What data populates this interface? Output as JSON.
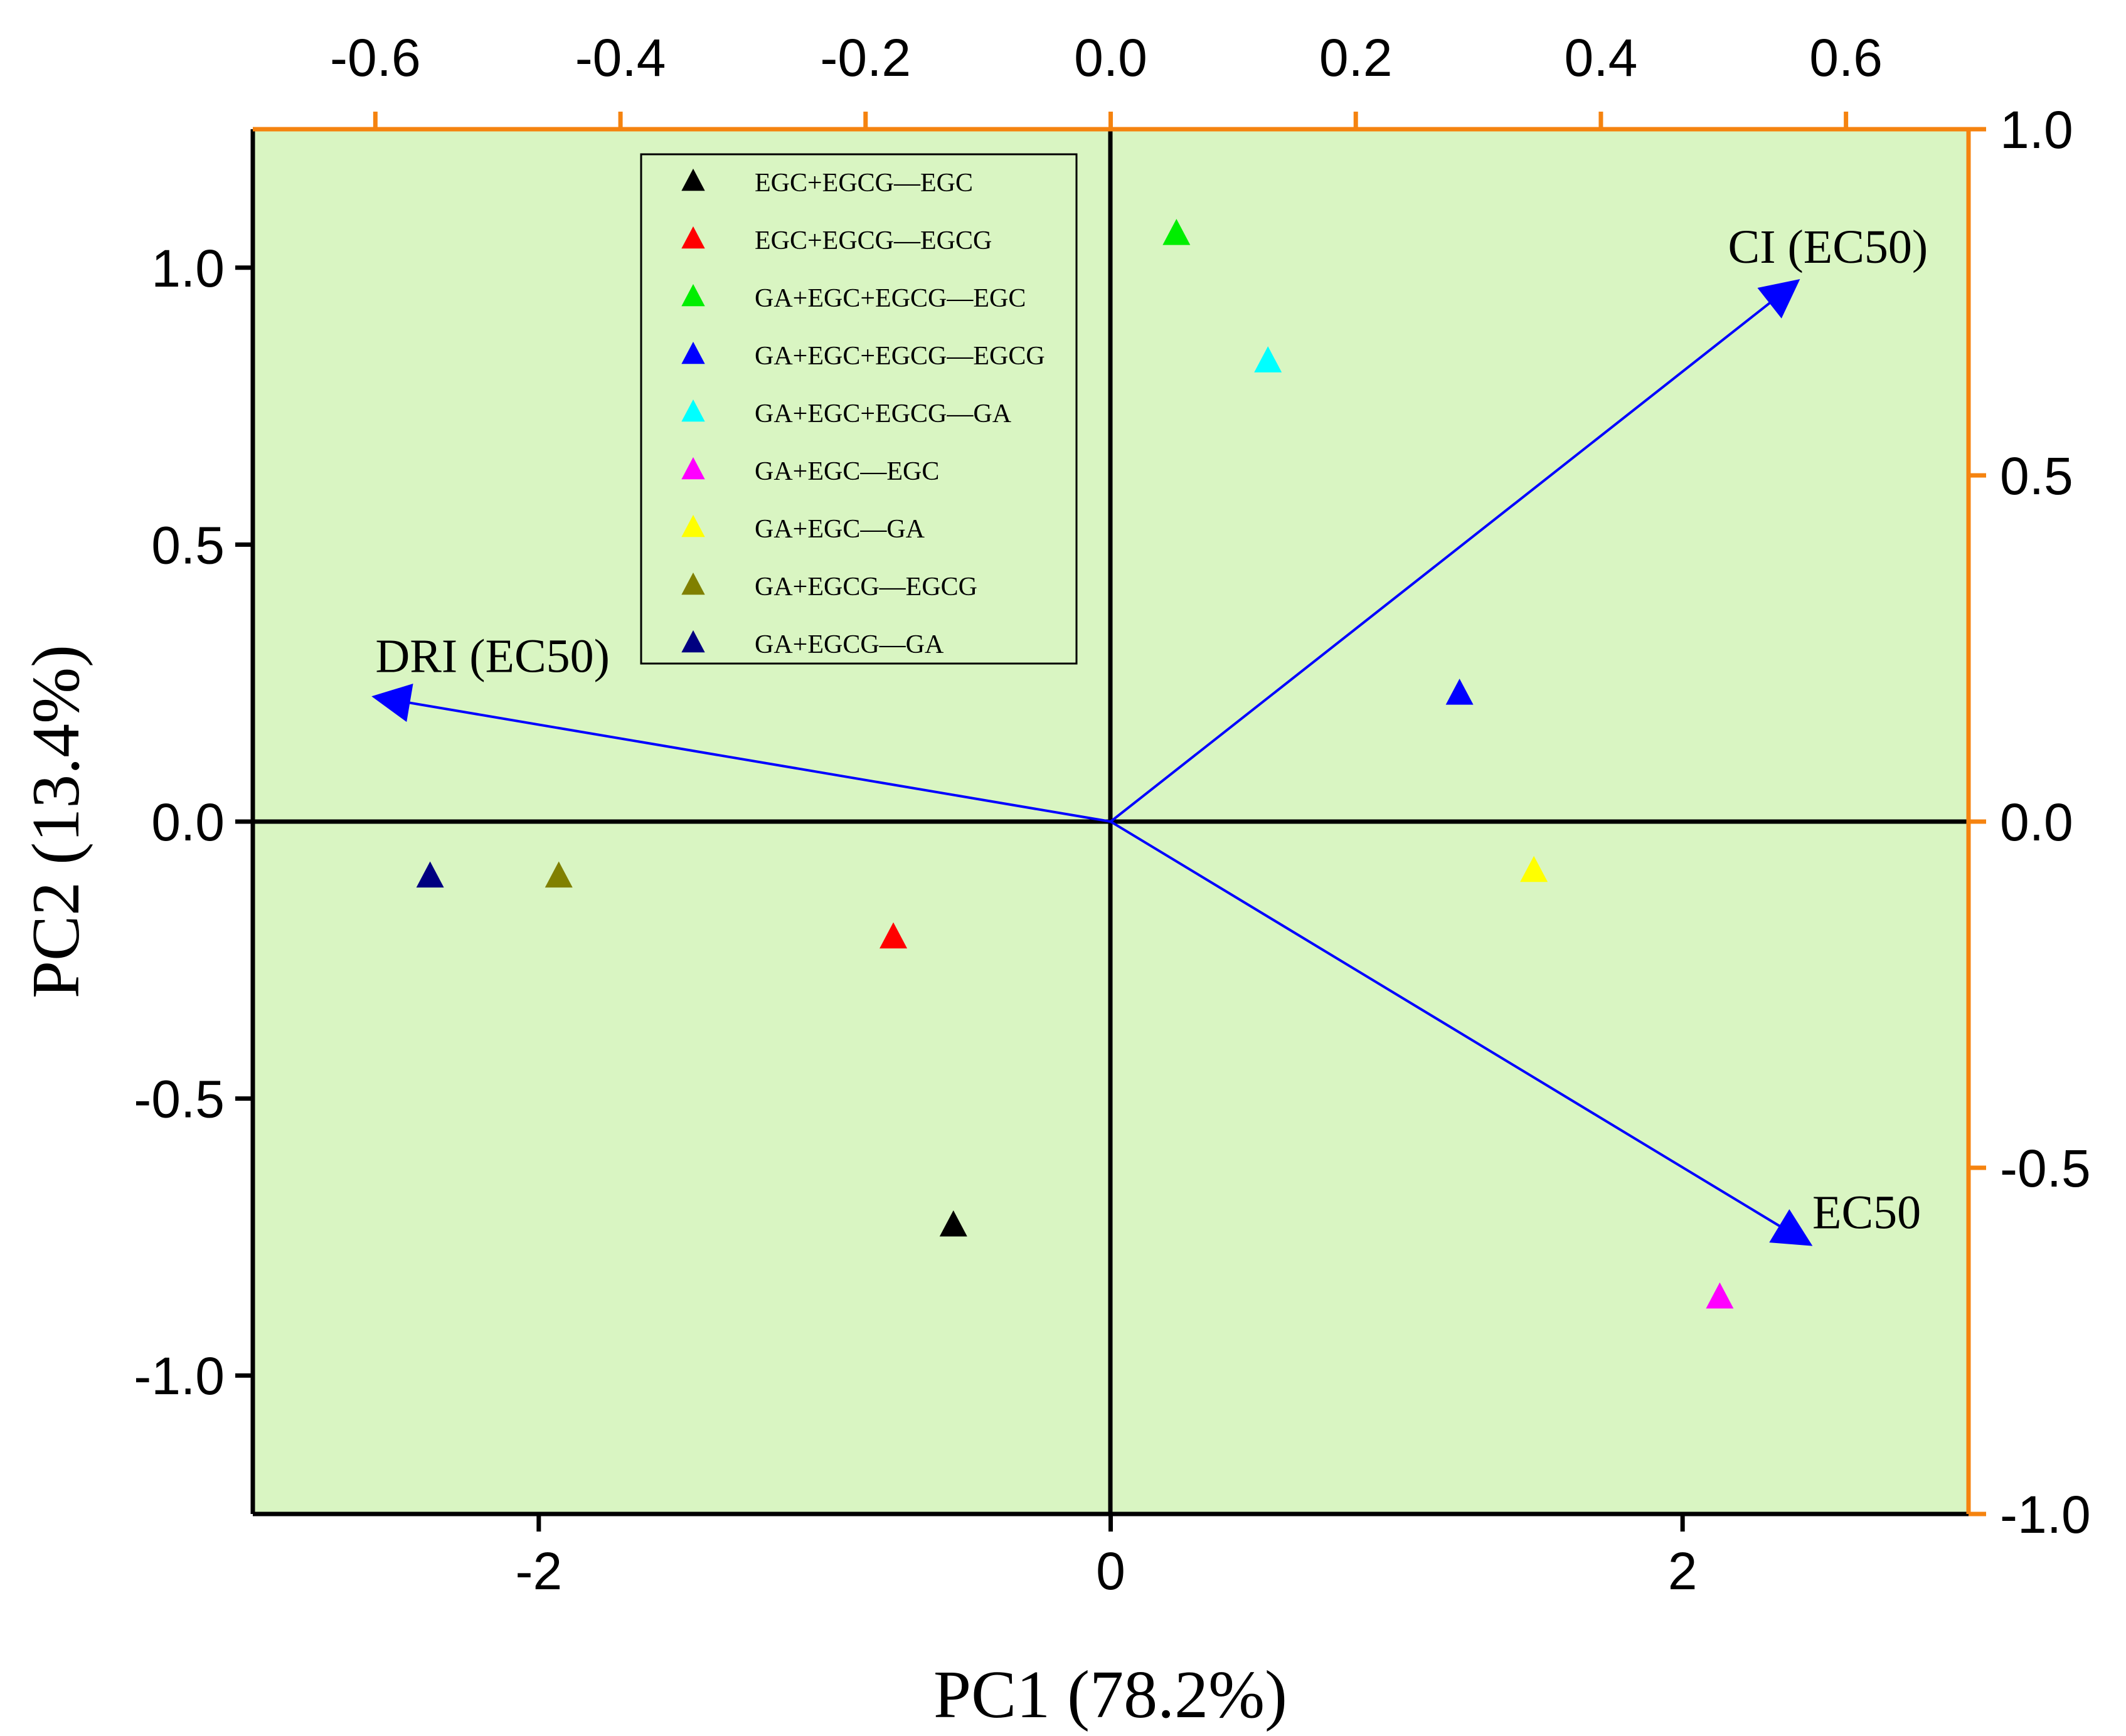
{
  "chart_data": {
    "type": "scatter",
    "subtype": "pca-biplot",
    "xlabel": "PC1 (78.2%)",
    "ylabel": "PC2 (13.4%)",
    "xlim": [
      -3.0,
      3.0
    ],
    "ylim": [
      -1.25,
      1.25
    ],
    "xticks": [
      -2,
      0,
      2
    ],
    "yticks": [
      -1.0,
      -0.5,
      0.0,
      0.5,
      1.0
    ],
    "xtick_labels": [
      "-2",
      "0",
      "2"
    ],
    "ytick_labels": [
      "-1.0",
      "-0.5",
      "0.0",
      "0.5",
      "1.0"
    ],
    "top_axis": {
      "lim": [
        -0.7,
        0.7
      ],
      "ticks": [
        -0.6,
        -0.4,
        -0.2,
        0.0,
        0.2,
        0.4,
        0.6
      ],
      "tick_labels": [
        "-0.6",
        "-0.4",
        "-0.2",
        "0.0",
        "0.2",
        "0.4",
        "0.6"
      ],
      "color": "#F5830F"
    },
    "right_axis": {
      "lim": [
        -1.0,
        1.0
      ],
      "ticks": [
        -1.0,
        -0.5,
        0.0,
        0.5,
        1.0
      ],
      "tick_labels": [
        "-1.0",
        "-0.5",
        "0.0",
        "0.5",
        "1.0"
      ],
      "color": "#F5830F"
    },
    "background_color": "#D9F5C2",
    "grid": false,
    "legend_position": "top-center",
    "series": [
      {
        "name": "EGC+EGCG—EGC",
        "color": "#000000",
        "x": [
          -0.55
        ],
        "y": [
          -0.73
        ]
      },
      {
        "name": "EGC+EGCG—EGCG",
        "color": "#FF0000",
        "x": [
          -0.76
        ],
        "y": [
          -0.21
        ]
      },
      {
        "name": "GA+EGC+EGCG—EGC",
        "color": "#00EE00",
        "x": [
          0.23
        ],
        "y": [
          1.06
        ]
      },
      {
        "name": "GA+EGC+EGCG—EGCG",
        "color": "#0000FF",
        "x": [
          1.22
        ],
        "y": [
          0.23
        ]
      },
      {
        "name": "GA+EGC+EGCG—GA",
        "color": "#00FFFF",
        "x": [
          0.55
        ],
        "y": [
          0.83
        ]
      },
      {
        "name": "GA+EGC—EGC",
        "color": "#FF00FF",
        "x": [
          2.13
        ],
        "y": [
          -0.86
        ]
      },
      {
        "name": "GA+EGC—GA",
        "color": "#FFFF00",
        "x": [
          1.48
        ],
        "y": [
          -0.09
        ]
      },
      {
        "name": "GA+EGCG—EGCG",
        "color": "#808000",
        "x": [
          -1.93
        ],
        "y": [
          -0.1
        ]
      },
      {
        "name": "GA+EGCG—GA",
        "color": "#000080",
        "x": [
          -2.38
        ],
        "y": [
          -0.1
        ]
      }
    ],
    "loadings": [
      {
        "name": "CI (EC50)",
        "x": 0.56,
        "y": 0.78,
        "color": "#0000FF"
      },
      {
        "name": "DRI (EC50)",
        "x": -0.6,
        "y": 0.18,
        "color": "#0000FF"
      },
      {
        "name": "EC50",
        "x": 0.57,
        "y": -0.61,
        "color": "#0000FF"
      }
    ]
  }
}
